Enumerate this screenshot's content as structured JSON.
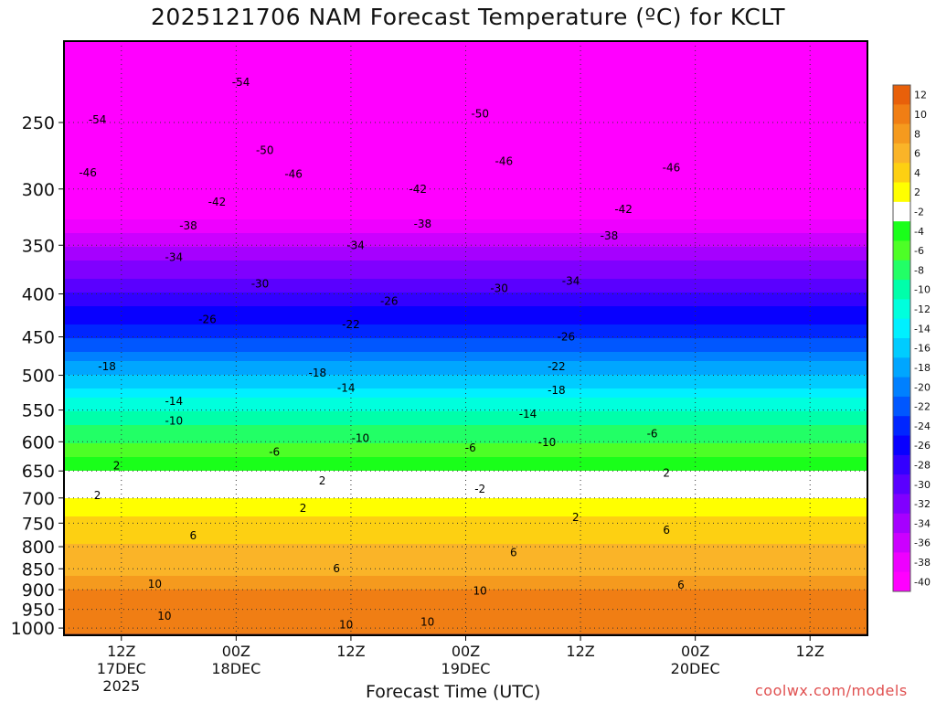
{
  "title": "2025121706 NAM Forecast Temperature (ºC) for KCLT",
  "credit": "coolwx.com/models",
  "chart_data": {
    "type": "heatmap",
    "title": "2025121706 NAM Forecast Temperature (ºC) for KCLT",
    "xlabel": "Forecast Time (UTC)",
    "ylabel": "",
    "x_ticks": [
      {
        "label": "12Z",
        "sub1": "17DEC",
        "sub2": "2025",
        "hour": 6
      },
      {
        "label": "00Z",
        "sub1": "18DEC",
        "sub2": "",
        "hour": 18
      },
      {
        "label": "12Z",
        "sub1": "",
        "sub2": "",
        "hour": 30
      },
      {
        "label": "00Z",
        "sub1": "19DEC",
        "sub2": "",
        "hour": 42
      },
      {
        "label": "12Z",
        "sub1": "",
        "sub2": "",
        "hour": 54
      },
      {
        "label": "00Z",
        "sub1": "20DEC",
        "sub2": "",
        "hour": 66
      },
      {
        "label": "12Z",
        "sub1": "",
        "sub2": "",
        "hour": 78
      }
    ],
    "xlim_hours": [
      0,
      84
    ],
    "y_axis": "pressure (hPa), log scale, reversed",
    "y_ticks": [
      250,
      300,
      350,
      400,
      450,
      500,
      550,
      600,
      650,
      700,
      750,
      800,
      850,
      900,
      950,
      1000
    ],
    "ylim": [
      1020,
      200
    ],
    "grid": "dotted vertical at 00Z/12Z, dotted horizontal at pressure levels",
    "colorbar": {
      "labels": [
        "12",
        "10",
        "8",
        "6",
        "4",
        "2",
        "-2",
        "-4",
        "-6",
        "-8",
        "-10",
        "-12",
        "-14",
        "-16",
        "-18",
        "-20",
        "-22",
        "-24",
        "-26",
        "-28",
        "-30",
        "-32",
        "-34",
        "-36",
        "-38",
        "-40"
      ],
      "colors": [
        "#e8600a",
        "#f07e14",
        "#f59a1e",
        "#fab428",
        "#fdd012",
        "#ffff00",
        "#ffffff",
        "#1aff1a",
        "#4dff26",
        "#22ff66",
        "#00ffaa",
        "#00ffdd",
        "#00f0ff",
        "#00ccff",
        "#00a6ff",
        "#0080ff",
        "#0057ff",
        "#0026ff",
        "#0800ff",
        "#3300ff",
        "#5a00ff",
        "#8000ff",
        "#a600ff",
        "#cc00ff",
        "#ee00ff",
        "#ff00ff"
      ]
    },
    "pressure_profile_c": [
      {
        "p": 1000,
        "t": 10
      },
      {
        "p": 900,
        "t": 10
      },
      {
        "p": 850,
        "t": 7
      },
      {
        "p": 750,
        "t": 5
      },
      {
        "p": 700,
        "t": 2
      },
      {
        "p": 650,
        "t": -2
      },
      {
        "p": 600,
        "t": -6
      },
      {
        "p": 550,
        "t": -10
      },
      {
        "p": 500,
        "t": -16
      },
      {
        "p": 450,
        "t": -22
      },
      {
        "p": 400,
        "t": -28
      },
      {
        "p": 350,
        "t": -34
      },
      {
        "p": 300,
        "t": -42
      },
      {
        "p": 250,
        "t": -50
      },
      {
        "p": 200,
        "t": -56
      }
    ],
    "contour_labels": [
      {
        "text": "-54",
        "hour": 18.5,
        "p": 224
      },
      {
        "text": "-54",
        "hour": 3.5,
        "p": 248
      },
      {
        "text": "-50",
        "hour": 43.5,
        "p": 244
      },
      {
        "text": "-50",
        "hour": 21,
        "p": 270
      },
      {
        "text": "-46",
        "hour": 2.5,
        "p": 287
      },
      {
        "text": "-46",
        "hour": 24,
        "p": 288
      },
      {
        "text": "-46",
        "hour": 46,
        "p": 278
      },
      {
        "text": "-46",
        "hour": 63.5,
        "p": 283
      },
      {
        "text": "-42",
        "hour": 16,
        "p": 311
      },
      {
        "text": "-42",
        "hour": 37,
        "p": 300
      },
      {
        "text": "-42",
        "hour": 58.5,
        "p": 317
      },
      {
        "text": "-38",
        "hour": 13,
        "p": 332
      },
      {
        "text": "-38",
        "hour": 37.5,
        "p": 330
      },
      {
        "text": "-38",
        "hour": 57,
        "p": 341
      },
      {
        "text": "-34",
        "hour": 11.5,
        "p": 362
      },
      {
        "text": "-34",
        "hour": 30.5,
        "p": 350
      },
      {
        "text": "-34",
        "hour": 53,
        "p": 386
      },
      {
        "text": "-30",
        "hour": 20.5,
        "p": 389
      },
      {
        "text": "-30",
        "hour": 45.5,
        "p": 394
      },
      {
        "text": "-26",
        "hour": 15,
        "p": 429
      },
      {
        "text": "-26",
        "hour": 34,
        "p": 408
      },
      {
        "text": "-26",
        "hour": 52.5,
        "p": 450
      },
      {
        "text": "-22",
        "hour": 30,
        "p": 435
      },
      {
        "text": "-22",
        "hour": 51.5,
        "p": 488
      },
      {
        "text": "-18",
        "hour": 4.5,
        "p": 488
      },
      {
        "text": "-18",
        "hour": 26.5,
        "p": 497
      },
      {
        "text": "-18",
        "hour": 51.5,
        "p": 521
      },
      {
        "text": "-14",
        "hour": 11.5,
        "p": 537
      },
      {
        "text": "-14",
        "hour": 29.5,
        "p": 518
      },
      {
        "text": "-14",
        "hour": 48.5,
        "p": 556
      },
      {
        "text": "-10",
        "hour": 11.5,
        "p": 567
      },
      {
        "text": "-10",
        "hour": 31,
        "p": 594
      },
      {
        "text": "-10",
        "hour": 50.5,
        "p": 601
      },
      {
        "text": "-6",
        "hour": 22,
        "p": 617
      },
      {
        "text": "-6",
        "hour": 42.5,
        "p": 610
      },
      {
        "text": "-6",
        "hour": 61.5,
        "p": 587
      },
      {
        "text": "2",
        "hour": 5.5,
        "p": 641
      },
      {
        "text": "2",
        "hour": 27,
        "p": 668
      },
      {
        "text": "-2",
        "hour": 43.5,
        "p": 683
      },
      {
        "text": "2",
        "hour": 63,
        "p": 654
      },
      {
        "text": "2",
        "hour": 3.5,
        "p": 695
      },
      {
        "text": "2",
        "hour": 25,
        "p": 720
      },
      {
        "text": "2",
        "hour": 53.5,
        "p": 738
      },
      {
        "text": "6",
        "hour": 13.5,
        "p": 776
      },
      {
        "text": "6",
        "hour": 28.5,
        "p": 849
      },
      {
        "text": "6",
        "hour": 47,
        "p": 813
      },
      {
        "text": "6",
        "hour": 63,
        "p": 765
      },
      {
        "text": "6",
        "hour": 64.5,
        "p": 889
      },
      {
        "text": "10",
        "hour": 9.5,
        "p": 886
      },
      {
        "text": "10",
        "hour": 43.5,
        "p": 903
      },
      {
        "text": "10",
        "hour": 10.5,
        "p": 968
      },
      {
        "text": "10",
        "hour": 29.5,
        "p": 991
      },
      {
        "text": "10",
        "hour": 38,
        "p": 983
      }
    ]
  }
}
